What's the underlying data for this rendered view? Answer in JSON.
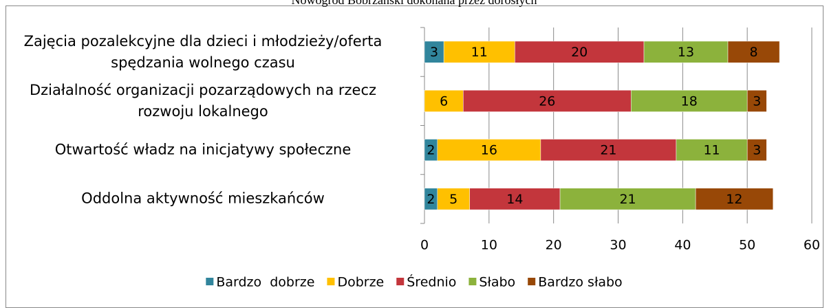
{
  "chart_data": {
    "type": "stacked-bar-horizontal",
    "title": "Nowogród Bobrzański dokonana przez dorosłych",
    "categories": [
      "Zajęcia pozalekcyjne dla dzieci i młodzieży/oferta spędzania wolnego czasu",
      "Działalność organizacji pozarządowych na rzecz rozwoju lokalnego",
      "Otwartość władz na inicjatywy społeczne",
      "Oddolna aktywność mieszkańców"
    ],
    "series": [
      {
        "name": "Bardzo  dobrze",
        "color": "#31859c",
        "values": [
          3,
          null,
          2,
          2
        ]
      },
      {
        "name": "Dobrze",
        "color": "#ffc000",
        "values": [
          11,
          6,
          16,
          5
        ]
      },
      {
        "name": "Średnio",
        "color": "#c3363c",
        "values": [
          20,
          26,
          21,
          14
        ]
      },
      {
        "name": "Słabo",
        "color": "#8cb23c",
        "values": [
          13,
          18,
          11,
          21
        ]
      },
      {
        "name": "Bardzo słabo",
        "color": "#984807",
        "values": [
          8,
          3,
          3,
          12
        ]
      }
    ],
    "xlim": [
      0,
      60
    ],
    "xticks": [
      0,
      10,
      20,
      30,
      40,
      50,
      60
    ],
    "grid": true,
    "legend": "bottom"
  }
}
